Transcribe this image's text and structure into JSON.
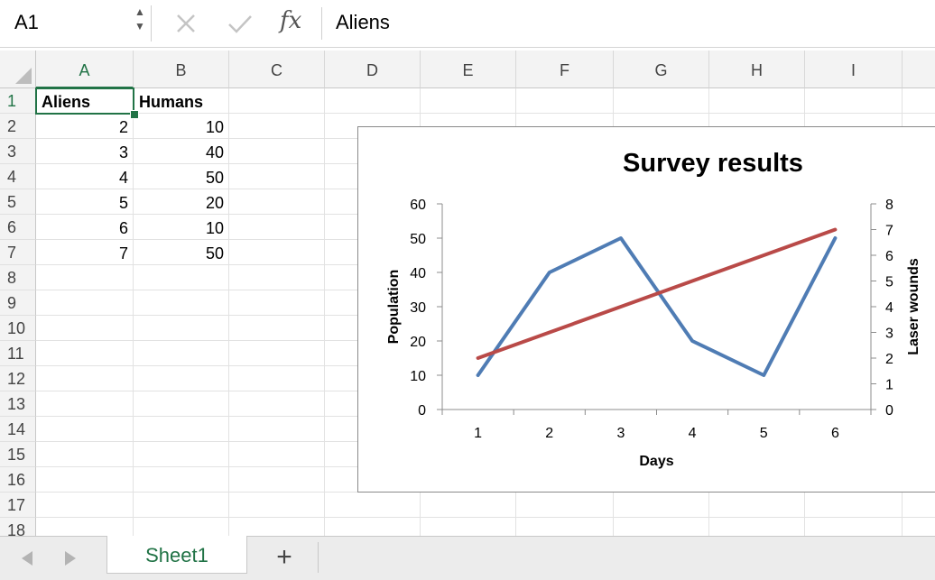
{
  "formula_bar": {
    "name_box": "A1",
    "formula": "Aliens",
    "icons": {
      "cancel": "close-icon",
      "enter": "check-icon",
      "function": "fx-icon",
      "fx_label": "fx"
    }
  },
  "grid": {
    "columns": [
      "A",
      "B",
      "C",
      "D",
      "E",
      "F",
      "G",
      "H",
      "I"
    ],
    "rows": [
      "1",
      "2",
      "3",
      "4",
      "5",
      "6",
      "7",
      "8",
      "9",
      "10",
      "11",
      "12",
      "13",
      "14",
      "15",
      "16",
      "17",
      "18"
    ],
    "active_cell": "A1",
    "cells": {
      "A1": "Aliens",
      "B1": "Humans",
      "A2": "2",
      "B2": "10",
      "A3": "3",
      "B3": "40",
      "A4": "4",
      "B4": "50",
      "A5": "5",
      "B5": "20",
      "A6": "6",
      "B6": "10",
      "A7": "7",
      "B7": "50"
    }
  },
  "chart_data": {
    "type": "line",
    "title": "Survey results",
    "xlabel": "Days",
    "ylabel": "Population",
    "y2label": "Laser wounds",
    "categories": [
      "1",
      "2",
      "3",
      "4",
      "5",
      "6"
    ],
    "ylim": [
      0,
      60
    ],
    "yticks": [
      "0",
      "10",
      "20",
      "30",
      "40",
      "50",
      "60"
    ],
    "y2lim": [
      0,
      8
    ],
    "y2ticks": [
      "0",
      "1",
      "2",
      "3",
      "4",
      "5",
      "6",
      "7",
      "8"
    ],
    "grid": false,
    "series": [
      {
        "axis": "primary",
        "values": [
          10,
          40,
          50,
          20,
          10,
          50
        ],
        "color": "#4F7CB4"
      },
      {
        "axis": "secondary",
        "values": [
          2,
          3,
          4,
          5,
          6,
          7
        ],
        "color": "#B94A48"
      }
    ]
  },
  "tab_bar": {
    "sheet_name": "Sheet1",
    "add_label": "+",
    "prev_icon": "triangle-left-icon",
    "next_icon": "triangle-right-icon"
  },
  "colors": {
    "accent": "#217346",
    "header_bg": "#F3F3F3"
  }
}
